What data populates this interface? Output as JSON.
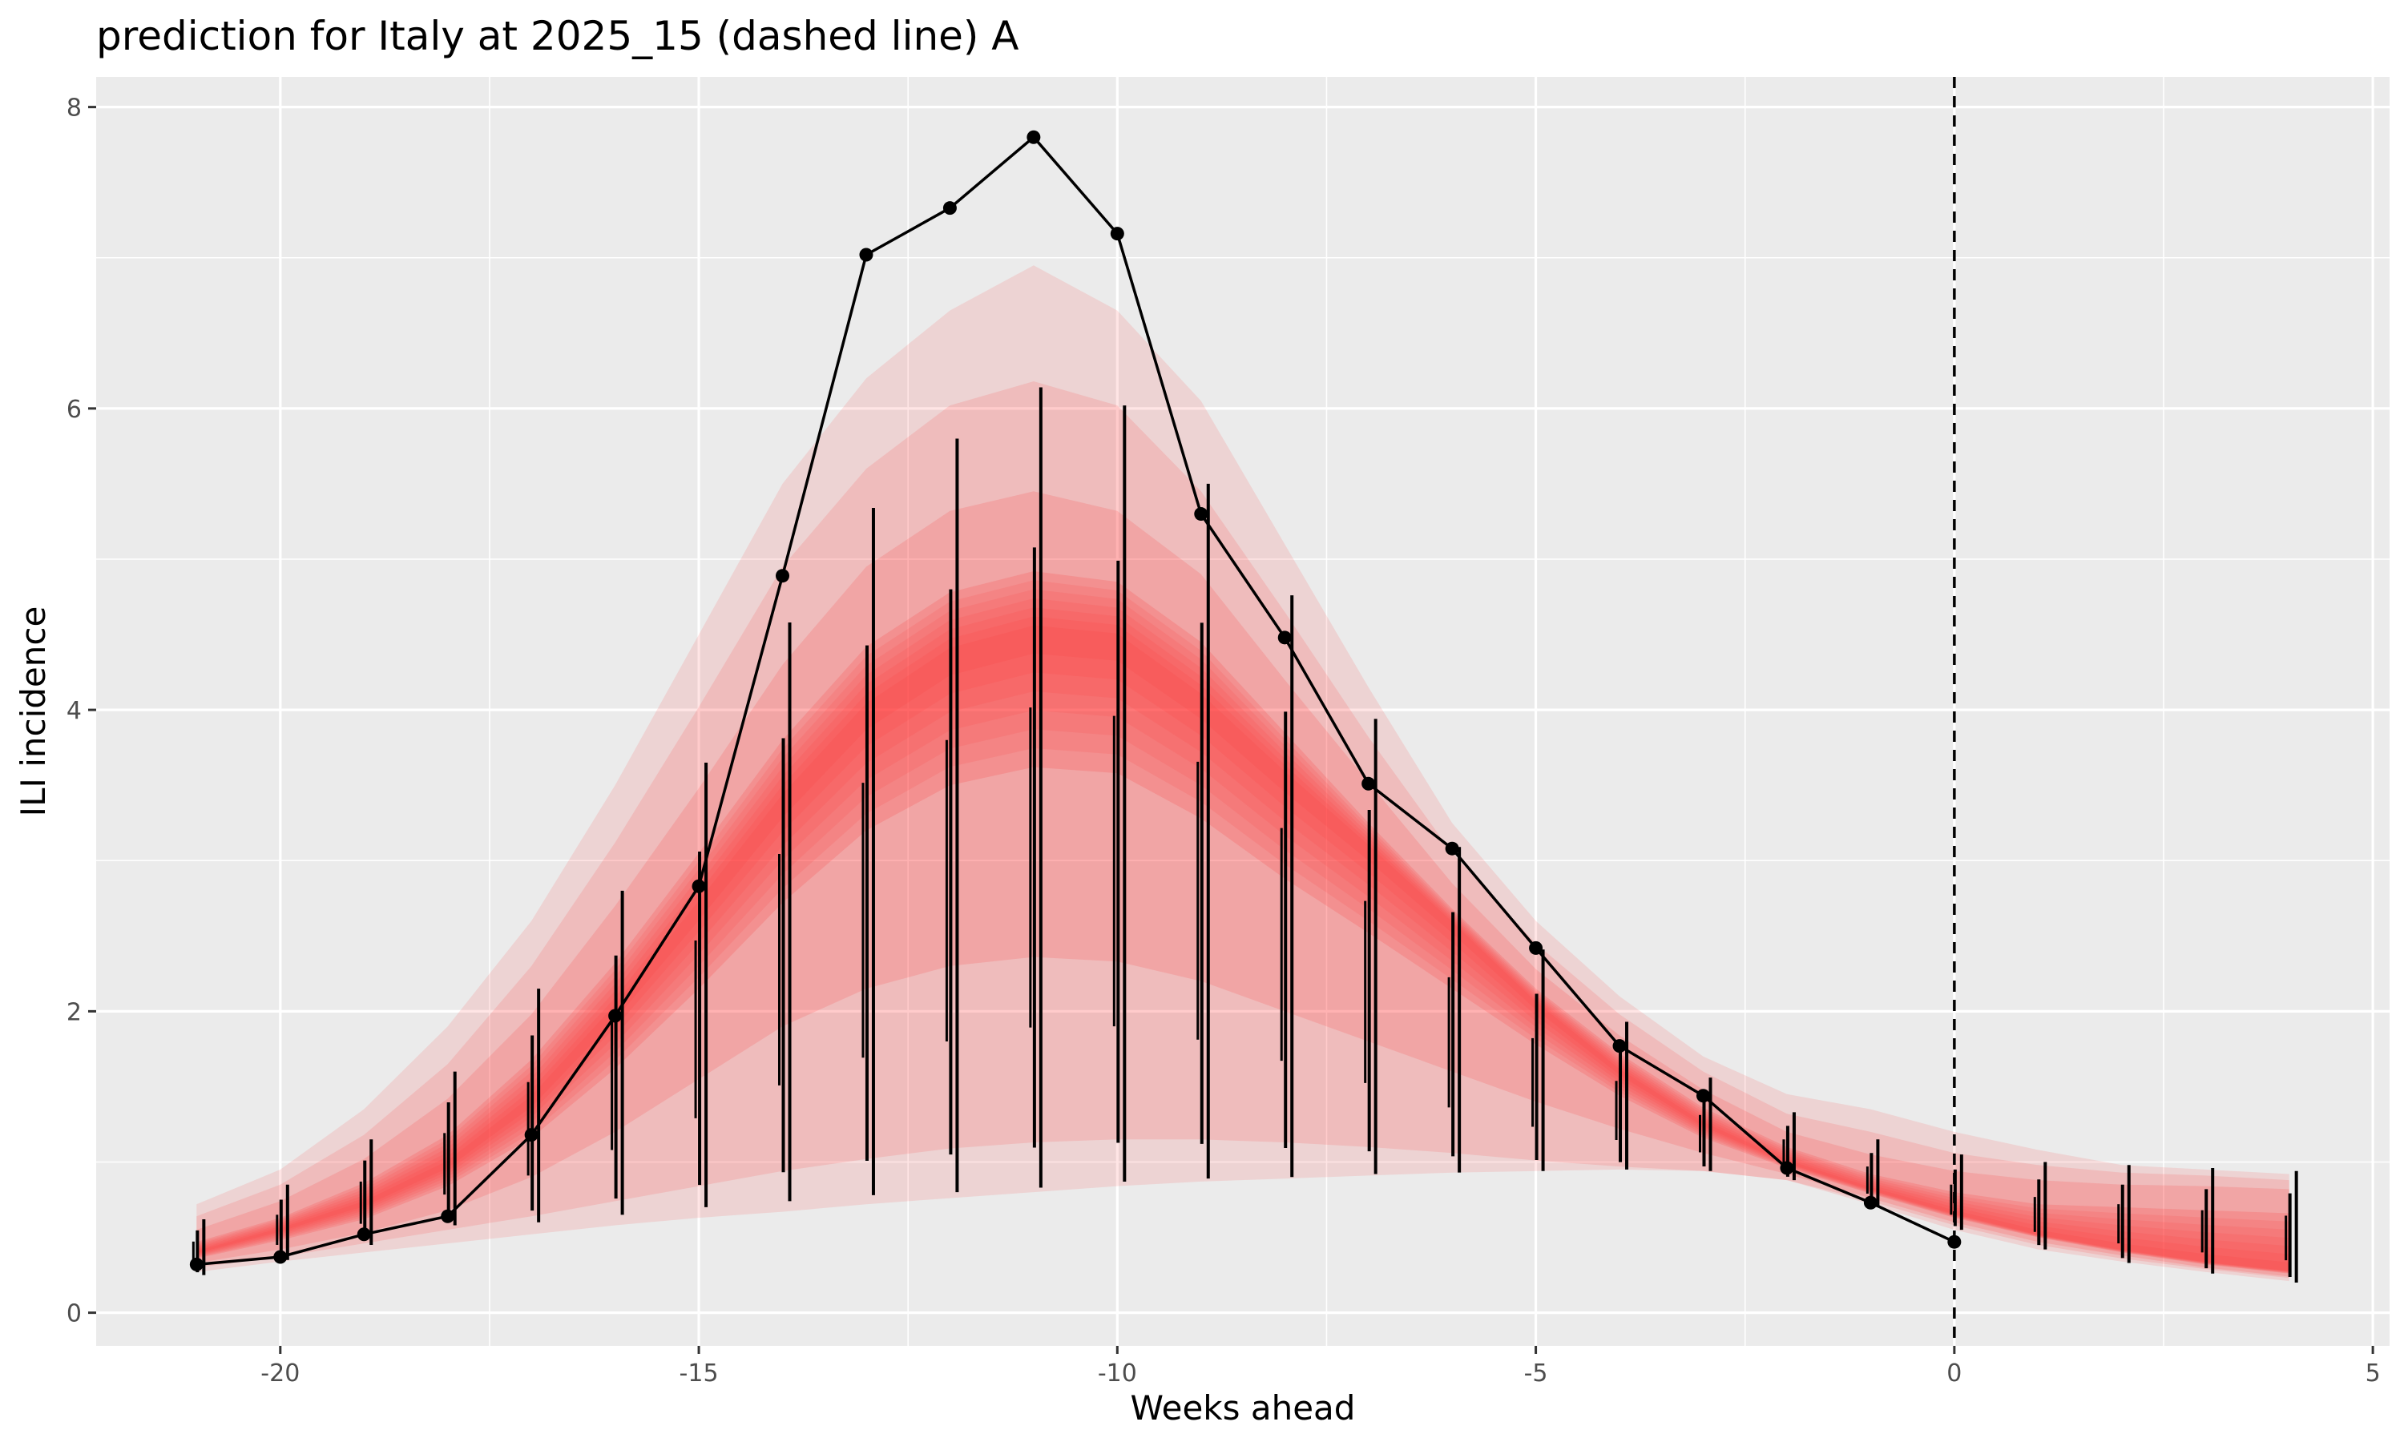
{
  "chart_data": {
    "type": "line",
    "title": "prediction for Italy at 2025_15 (dashed line) A",
    "xlabel": "Weeks ahead",
    "ylabel": "ILI incidence",
    "xlim": [
      -22.2,
      5.2
    ],
    "ylim": [
      -0.22,
      8.2
    ],
    "x_ticks": [
      -20,
      -15,
      -10,
      -5,
      0,
      5
    ],
    "x_tick_labels": [
      "-20",
      "-15",
      "-10",
      "-5",
      "0",
      "5"
    ],
    "y_ticks": [
      0,
      2,
      4,
      6,
      8
    ],
    "y_tick_labels": [
      "0",
      "2",
      "4",
      "6",
      "8"
    ],
    "grid": true,
    "legend": "none",
    "vline_x": 0,
    "colors": {
      "panel": "#ebebeb",
      "grid": "#ffffff",
      "band": "#ff3333",
      "line": "#000000"
    },
    "observed": {
      "x": [
        -21,
        -20,
        -19,
        -18,
        -17,
        -16,
        -15,
        -14,
        -13,
        -12,
        -11,
        -10,
        -9,
        -8,
        -7,
        -6,
        -5,
        -4,
        -3,
        -2,
        -1,
        0
      ],
      "y": [
        0.32,
        0.37,
        0.52,
        0.64,
        1.18,
        1.97,
        2.83,
        4.89,
        7.02,
        7.33,
        7.8,
        7.16,
        5.3,
        4.48,
        3.51,
        3.08,
        2.42,
        1.77,
        1.44,
        0.96,
        0.73,
        0.47
      ]
    },
    "forecast_band": {
      "x": [
        -21,
        -20,
        -19,
        -18,
        -17,
        -16,
        -15,
        -14,
        -13,
        -12,
        -11,
        -10,
        -9,
        -8,
        -7,
        -6,
        -5,
        -4,
        -3,
        -2,
        -1,
        0,
        1,
        2,
        3,
        4
      ],
      "median": [
        0.4,
        0.55,
        0.72,
        0.98,
        1.4,
        2.0,
        2.68,
        3.38,
        3.98,
        4.35,
        4.5,
        4.45,
        4.05,
        3.55,
        3.08,
        2.58,
        2.05,
        1.6,
        1.25,
        1.0,
        0.82,
        0.66,
        0.52,
        0.42,
        0.34,
        0.28
      ],
      "bounds_low": [
        [
          0.27,
          0.34,
          0.4,
          0.46,
          0.52,
          0.58,
          0.63,
          0.67,
          0.72,
          0.76,
          0.8,
          0.84,
          0.87,
          0.89,
          0.91,
          0.93,
          0.94,
          0.95,
          0.94,
          0.88,
          0.72,
          0.55,
          0.42,
          0.34,
          0.27,
          0.21
        ],
        [
          0.3,
          0.37,
          0.46,
          0.55,
          0.64,
          0.74,
          0.84,
          0.94,
          1.02,
          1.09,
          1.13,
          1.15,
          1.15,
          1.13,
          1.1,
          1.06,
          1.01,
          0.97,
          0.94,
          0.88,
          0.74,
          0.58,
          0.45,
          0.36,
          0.29,
          0.23
        ],
        [
          0.33,
          0.42,
          0.53,
          0.68,
          0.9,
          1.2,
          1.55,
          1.9,
          2.15,
          2.3,
          2.36,
          2.33,
          2.2,
          2.0,
          1.8,
          1.6,
          1.4,
          1.22,
          1.06,
          0.92,
          0.76,
          0.6,
          0.47,
          0.38,
          0.3,
          0.24
        ],
        [
          0.36,
          0.48,
          0.62,
          0.84,
          1.16,
          1.62,
          2.15,
          2.72,
          3.2,
          3.5,
          3.62,
          3.58,
          3.28,
          2.88,
          2.52,
          2.15,
          1.78,
          1.44,
          1.16,
          0.96,
          0.79,
          0.63,
          0.5,
          0.4,
          0.32,
          0.26
        ]
      ],
      "bounds_high": [
        [
          0.72,
          0.95,
          1.35,
          1.9,
          2.6,
          3.5,
          4.5,
          5.5,
          6.2,
          6.65,
          6.95,
          6.65,
          6.05,
          5.1,
          4.15,
          3.25,
          2.6,
          2.1,
          1.7,
          1.45,
          1.35,
          1.2,
          1.08,
          0.98,
          0.95,
          0.92
        ],
        [
          0.64,
          0.85,
          1.18,
          1.65,
          2.3,
          3.12,
          4.02,
          4.95,
          5.6,
          6.02,
          6.18,
          6.02,
          5.45,
          4.65,
          3.82,
          3.05,
          2.45,
          1.98,
          1.6,
          1.32,
          1.2,
          1.06,
          0.98,
          0.93,
          0.91,
          0.88
        ],
        [
          0.55,
          0.74,
          1.02,
          1.42,
          1.98,
          2.7,
          3.48,
          4.3,
          4.95,
          5.32,
          5.45,
          5.32,
          4.9,
          4.2,
          3.52,
          2.85,
          2.28,
          1.84,
          1.48,
          1.2,
          1.05,
          0.94,
          0.88,
          0.85,
          0.84,
          0.82
        ],
        [
          0.47,
          0.63,
          0.86,
          1.18,
          1.68,
          2.32,
          3.05,
          3.8,
          4.42,
          4.78,
          4.92,
          4.85,
          4.45,
          3.85,
          3.25,
          2.68,
          2.15,
          1.72,
          1.36,
          1.1,
          0.92,
          0.8,
          0.72,
          0.7,
          0.68,
          0.66
        ]
      ]
    },
    "sample_bars": [
      {
        "x": -21,
        "lo": 0.25,
        "hi": 0.62
      },
      {
        "x": -20,
        "lo": 0.35,
        "hi": 0.85
      },
      {
        "x": -19,
        "lo": 0.45,
        "hi": 1.15
      },
      {
        "x": -18,
        "lo": 0.58,
        "hi": 1.6
      },
      {
        "x": -17,
        "lo": 0.6,
        "hi": 2.15
      },
      {
        "x": -16,
        "lo": 0.65,
        "hi": 2.8
      },
      {
        "x": -15,
        "lo": 0.7,
        "hi": 3.65
      },
      {
        "x": -14,
        "lo": 0.74,
        "hi": 4.58
      },
      {
        "x": -13,
        "lo": 0.78,
        "hi": 5.34
      },
      {
        "x": -12,
        "lo": 0.8,
        "hi": 5.8
      },
      {
        "x": -11,
        "lo": 0.83,
        "hi": 6.14
      },
      {
        "x": -10,
        "lo": 0.87,
        "hi": 6.02
      },
      {
        "x": -9,
        "lo": 0.89,
        "hi": 5.5
      },
      {
        "x": -8,
        "lo": 0.9,
        "hi": 4.76
      },
      {
        "x": -7,
        "lo": 0.92,
        "hi": 3.94
      },
      {
        "x": -6,
        "lo": 0.93,
        "hi": 3.09
      },
      {
        "x": -5,
        "lo": 0.94,
        "hi": 2.41
      },
      {
        "x": -4,
        "lo": 0.95,
        "hi": 1.93
      },
      {
        "x": -3,
        "lo": 0.94,
        "hi": 1.56
      },
      {
        "x": -2,
        "lo": 0.88,
        "hi": 1.33
      },
      {
        "x": -1,
        "lo": 0.7,
        "hi": 1.15
      },
      {
        "x": 0,
        "lo": 0.55,
        "hi": 1.05
      },
      {
        "x": 1,
        "lo": 0.42,
        "hi": 1.0
      },
      {
        "x": 2,
        "lo": 0.33,
        "hi": 0.98
      },
      {
        "x": 3,
        "lo": 0.26,
        "hi": 0.96
      },
      {
        "x": 4,
        "lo": 0.2,
        "hi": 0.94
      }
    ]
  }
}
